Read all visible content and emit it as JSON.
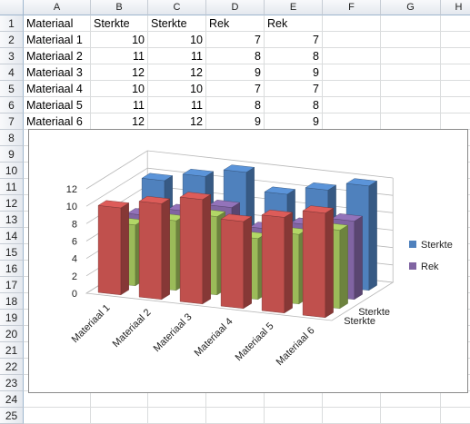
{
  "columns": [
    "A",
    "B",
    "C",
    "D",
    "E",
    "F",
    "G",
    "H"
  ],
  "rows": [
    "1",
    "2",
    "3",
    "4",
    "5",
    "6",
    "7",
    "8",
    "9",
    "10",
    "11",
    "12",
    "13",
    "14",
    "15",
    "16",
    "17",
    "18",
    "19",
    "20",
    "21",
    "22",
    "23",
    "24",
    "25"
  ],
  "table": [
    [
      "Materiaal",
      "Sterkte",
      "Sterkte",
      "Rek",
      "Rek"
    ],
    [
      "Materiaal 1",
      "10",
      "10",
      "7",
      "7"
    ],
    [
      "Materiaal 2",
      "11",
      "11",
      "8",
      "8"
    ],
    [
      "Materiaal 3",
      "12",
      "12",
      "9",
      "9"
    ],
    [
      "Materiaal 4",
      "10",
      "10",
      "7",
      "7"
    ],
    [
      "Materiaal 5",
      "11",
      "11",
      "8",
      "8"
    ],
    [
      "Materiaal 6",
      "12",
      "12",
      "9",
      "9"
    ]
  ],
  "chart_data": {
    "type": "bar",
    "variant": "3d-column",
    "categories": [
      "Materiaal 1",
      "Materiaal 2",
      "Materiaal 3",
      "Materiaal 4",
      "Materiaal 5",
      "Materiaal 6"
    ],
    "depth_labels": [
      "Sterkte",
      "Sterkte"
    ],
    "series": [
      {
        "name": "Sterkte",
        "color": "#4f81bd",
        "values": [
          10,
          11,
          12,
          10,
          11,
          12
        ]
      },
      {
        "name": "Rek",
        "color": "#8064a2",
        "values": [
          7,
          8,
          9,
          7,
          8,
          9
        ]
      },
      {
        "name": "",
        "color": "#9bbb59",
        "values": [
          7,
          8,
          9,
          7,
          8,
          9
        ]
      },
      {
        "name": "",
        "color": "#c0504d",
        "values": [
          10,
          11,
          12,
          10,
          11,
          12
        ]
      }
    ],
    "yticks": [
      "0",
      "2",
      "4",
      "6",
      "8",
      "10",
      "12"
    ],
    "ylim": [
      0,
      12
    ],
    "legend": [
      {
        "label": "Sterkte",
        "color": "#4f81bd"
      },
      {
        "label": "Rek",
        "color": "#8064a2"
      }
    ],
    "legend_position": "right",
    "grid": true
  }
}
